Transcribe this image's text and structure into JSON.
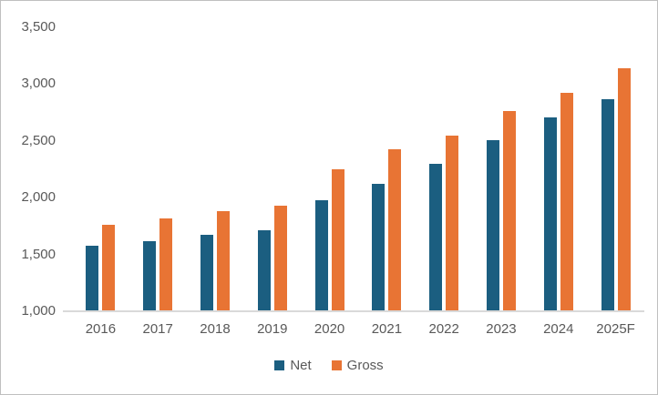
{
  "chart_data": {
    "type": "bar",
    "title": "",
    "xlabel": "",
    "ylabel": "",
    "categories": [
      "2016",
      "2017",
      "2018",
      "2019",
      "2020",
      "2021",
      "2022",
      "2023",
      "2024",
      "2025F"
    ],
    "series": [
      {
        "name": "Net",
        "color": "#1B5E80",
        "values": [
          1580,
          1620,
          1670,
          1710,
          1980,
          2120,
          2300,
          2510,
          2710,
          2870
        ]
      },
      {
        "name": "Gross",
        "color": "#E87434",
        "values": [
          1760,
          1820,
          1880,
          1930,
          2250,
          2430,
          2550,
          2760,
          2920,
          3140
        ]
      }
    ],
    "y_axis": {
      "min": 1000,
      "max": 3500,
      "step": 500,
      "tick_labels": [
        "1,000",
        "1,500",
        "2,000",
        "2,500",
        "3,000",
        "3,500"
      ]
    },
    "grid": false,
    "legend_position": "bottom"
  },
  "legend": {
    "items": [
      {
        "label": "Net",
        "color": "#1B5E80"
      },
      {
        "label": "Gross",
        "color": "#E87434"
      }
    ]
  },
  "colors": {
    "axis_line": "#d9d9d9",
    "tick_text": "#595959",
    "frame_border": "#bfbfbf",
    "background": "#ffffff"
  }
}
